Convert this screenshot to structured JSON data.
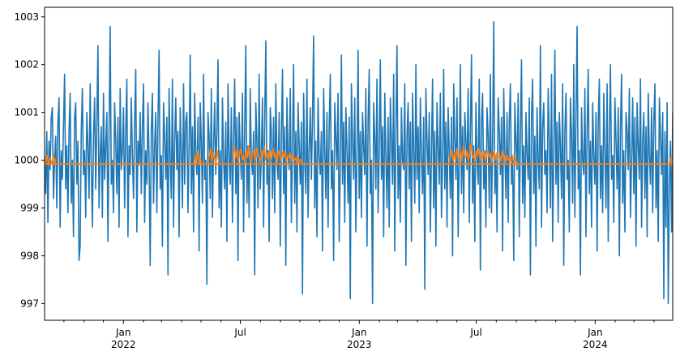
{
  "chart_data": {
    "type": "line",
    "title": "",
    "xlabel": "",
    "ylabel": "",
    "x_range": [
      "2021-09-01",
      "2024-04-30"
    ],
    "ylim": [
      996.65,
      1003.2
    ],
    "y_ticks": [
      997,
      998,
      999,
      1000,
      1001,
      1002,
      1003
    ],
    "y_tick_labels": [
      "997",
      "998",
      "999",
      "1000",
      "1001",
      "1002",
      "1003"
    ],
    "x_major_ticks": [
      {
        "date": "2022-01-01",
        "label": "Jan",
        "year": "2022"
      },
      {
        "date": "2022-07-01",
        "label": "Jul",
        "year": ""
      },
      {
        "date": "2023-01-01",
        "label": "Jan",
        "year": "2023"
      },
      {
        "date": "2023-07-01",
        "label": "Jul",
        "year": ""
      },
      {
        "date": "2024-01-01",
        "label": "Jan",
        "year": "2024"
      }
    ],
    "x_minor_ticks": [
      "2021-10-01",
      "2021-11-01",
      "2021-12-01",
      "2022-02-01",
      "2022-03-01",
      "2022-04-01",
      "2022-05-01",
      "2022-06-01",
      "2022-08-01",
      "2022-09-01",
      "2022-10-01",
      "2022-11-01",
      "2022-12-01",
      "2023-02-01",
      "2023-03-01",
      "2023-04-01",
      "2023-05-01",
      "2023-06-01",
      "2023-08-01",
      "2023-09-01",
      "2023-10-01",
      "2023-11-01",
      "2023-12-01",
      "2024-02-01",
      "2024-03-01",
      "2024-04-01"
    ],
    "grid": false,
    "legend": "none",
    "series": [
      {
        "color": "#1f77b4",
        "x_start": "2021-09-01",
        "x_step_days": 1,
        "values": [
          1000.1,
          999.3,
          1000.6,
          998.7,
          1000.4,
          999.8,
          1000.9,
          1001.1,
          999.2,
          1000.0,
          1000.5,
          999.0,
          1000.8,
          1001.3,
          998.6,
          1000.2,
          999.6,
          1000.7,
          1001.8,
          999.4,
          1000.3,
          998.9,
          1000.6,
          1001.4,
          999.1,
          1000.0,
          998.4,
          1000.9,
          1001.2,
          999.5,
          1000.4,
          997.9,
          998.2,
          1000.6,
          1001.5,
          999.7,
          1000.2,
          998.8,
          1001.0,
          1000.3,
          999.2,
          1001.6,
          999.9,
          998.6,
          1000.5,
          1001.3,
          999.4,
          1000.8,
          1002.4,
          999.0,
          1000.1,
          1000.7,
          998.8,
          1001.4,
          999.6,
          1000.3,
          1001.0,
          998.3,
          1000.6,
          1002.8,
          999.5,
          1000.0,
          998.9,
          1001.2,
          1000.4,
          999.3,
          1000.9,
          998.6,
          1001.5,
          999.8,
          1000.2,
          1001.1,
          999.0,
          1000.6,
          1001.7,
          998.4,
          1000.3,
          999.7,
          1001.3,
          1000.1,
          999.2,
          1000.8,
          1001.9,
          998.5,
          1000.4,
          999.9,
          1001.0,
          999.3,
          1000.7,
          1001.6,
          998.7,
          1000.2,
          999.5,
          1001.2,
          1000.0,
          997.8,
          1000.6,
          1001.4,
          999.1,
          1000.3,
          1001.0,
          998.9,
          1000.8,
          1002.3,
          999.4,
          1000.1,
          998.2,
          1001.2,
          1000.5,
          999.6,
          1000.9,
          997.6,
          1001.5,
          1000.0,
          999.2,
          1001.7,
          998.6,
          1000.4,
          1001.3,
          999.8,
          1000.6,
          998.4,
          1001.1,
          1000.2,
          999.0,
          1001.6,
          999.5,
          1000.8,
          1001.0,
          998.9,
          1000.3,
          1002.2,
          999.3,
          1000.7,
          998.5,
          1001.4,
          1000.1,
          999.7,
          1000.9,
          998.1,
          1001.2,
          1000.4,
          999.1,
          1001.8,
          999.6,
          1000.0,
          997.4,
          1001.0,
          1000.5,
          999.2,
          1001.5,
          998.8,
          1000.3,
          1001.2,
          999.7,
          1000.6,
          1002.1,
          999.0,
          1000.2,
          998.6,
          1001.3,
          1000.0,
          999.4,
          1000.8,
          998.3,
          1001.6,
          1000.1,
          999.5,
          1001.1,
          998.7,
          1000.4,
          1001.7,
          999.3,
          1000.9,
          997.9,
          1001.0,
          1000.2,
          999.6,
          1001.4,
          998.5,
          1000.7,
          1002.4,
          999.1,
          1000.3,
          998.8,
          1001.5,
          1000.0,
          999.7,
          1000.6,
          997.6,
          1001.2,
          1000.4,
          999.0,
          1001.8,
          999.4,
          1000.1,
          1001.3,
          998.6,
          1000.8,
          1002.5,
          999.5,
          1000.2,
          998.3,
          1001.1,
          1000.6,
          999.2,
          1000.9,
          998.9,
          1001.6,
          1000.0,
          999.6,
          1001.0,
          998.2,
          1000.5,
          1001.9,
          999.3,
          1000.7,
          997.8,
          1001.3,
          1000.1,
          999.8,
          1001.5,
          998.7,
          1000.4,
          1002.0,
          999.1,
          1000.6,
          998.5,
          1001.2,
          1000.3,
          999.5,
          1000.8,
          997.2,
          1001.4,
          1000.0,
          999.3,
          1001.7,
          998.8,
          1000.2,
          1001.1,
          999.6,
          1000.9,
          1002.6,
          999.0,
          1000.4,
          998.4,
          1001.3,
          1000.1,
          999.7,
          1000.6,
          998.1,
          1001.5,
          1000.3,
          999.2,
          1001.0,
          998.6,
          1000.7,
          1001.8,
          999.4,
          1000.2,
          997.9,
          1001.2,
          1000.5,
          999.8,
          1001.4,
          998.3,
          1000.0,
          1002.2,
          999.5,
          1000.8,
          998.7,
          1001.1,
          1000.2,
          999.1,
          1000.9,
          997.1,
          1001.6,
          1000.4,
          999.6,
          1001.3,
          998.5,
          1000.1,
          1002.3,
          999.2,
          1000.6,
          998.8,
          1001.0,
          1000.3,
          999.7,
          1001.5,
          998.2,
          1000.8,
          1001.9,
          999.3,
          1000.0,
          997.0,
          1001.2,
          1000.5,
          999.4,
          1001.7,
          998.9,
          1000.2,
          1002.1,
          999.6,
          1000.7,
          998.4,
          1001.4,
          1000.1,
          999.0,
          1000.9,
          998.6,
          1001.3,
          1000.4,
          999.5,
          1001.8,
          998.1,
          1000.6,
          1002.4,
          999.2,
          1000.3,
          998.7,
          1001.1,
          1000.0,
          999.8,
          1001.6,
          997.8,
          1000.5,
          1001.2,
          999.4,
          1000.8,
          998.3,
          1001.4,
          1000.2,
          999.1,
          1002.0,
          999.6,
          1000.7,
          998.9,
          1001.3,
          1000.1,
          999.3,
          1000.9,
          997.3,
          1001.5,
          1000.4,
          999.7,
          1001.0,
          998.5,
          1000.2,
          1001.7,
          999.0,
          1000.6,
          998.2,
          1001.2,
          1000.3,
          999.5,
          1001.4,
          998.8,
          1000.0,
          1001.9,
          999.4,
          1000.8,
          998.6,
          1001.1,
          1000.2,
          999.2,
          1000.9,
          998.0,
          1001.6,
          1000.5,
          999.6,
          1001.3,
          998.4,
          1000.1,
          1002.0,
          999.3,
          1000.7,
          998.9,
          1001.0,
          1000.4,
          999.8,
          1001.5,
          998.7,
          1000.6,
          1002.2,
          999.1,
          1000.3,
          998.3,
          1001.2,
          1000.0,
          999.5,
          1001.7,
          997.7,
          1000.8,
          1001.4,
          999.4,
          1000.2,
          998.6,
          1001.1,
          1000.5,
          999.0,
          1001.8,
          998.9,
          1000.4,
          1002.9,
          999.3,
          1000.1,
          998.5,
          1001.3,
          1000.6,
          999.7,
          1000.9,
          998.1,
          1001.5,
          1000.2,
          999.2,
          1001.0,
          998.7,
          1000.8,
          1001.6,
          999.5,
          1000.0,
          997.9,
          1001.2,
          1000.4,
          999.8,
          1001.4,
          998.4,
          1000.6,
          1002.1,
          999.1,
          1000.3,
          998.8,
          1001.0,
          1000.1,
          999.6,
          1001.3,
          997.6,
          1000.9,
          1001.7,
          999.3,
          1000.5,
          998.2,
          1001.1,
          1000.0,
          999.4,
          1002.4,
          998.6,
          1000.7,
          1001.2,
          999.7,
          1000.2,
          998.9,
          1001.5,
          1000.4,
          999.0,
          1001.8,
          998.3,
          1000.1,
          1002.3,
          999.5,
          1000.8,
          998.7,
          1001.0,
          1000.3,
          999.2,
          1001.6,
          997.8,
          1000.6,
          1001.4,
          999.6,
          1000.0,
          998.5,
          1001.3,
          1000.5,
          999.1,
          1002.0,
          998.8,
          1000.9,
          1002.8,
          999.4,
          1000.2,
          997.6,
          1001.1,
          1000.0,
          999.7,
          1001.5,
          998.4,
          1000.6,
          1001.9,
          999.3,
          1000.4,
          998.6,
          1001.2,
          1000.1,
          999.5,
          1001.0,
          998.1,
          1000.8,
          1001.7,
          999.2,
          1000.3,
          998.9,
          1001.4,
          1000.2,
          999.0,
          1001.6,
          998.3,
          1000.5,
          1002.0,
          999.6,
          1000.1,
          998.7,
          1001.3,
          1000.4,
          999.4,
          1001.1,
          998.0,
          1000.7,
          1001.8,
          999.1,
          1000.2,
          998.5,
          1001.0,
          1000.6,
          999.8,
          1001.5,
          998.8,
          1000.0,
          1001.3,
          999.3,
          1000.9,
          998.2,
          1001.2,
          1000.3,
          999.6,
          1001.7,
          998.6,
          1000.4,
          1001.0,
          999.2,
          1000.7,
          998.4,
          1001.4,
          1000.1,
          999.5,
          1001.1,
          998.9,
          1000.8,
          1001.6,
          999.0,
          1000.2,
          998.3,
          1001.3,
          1000.5,
          999.7,
          1001.0,
          997.1,
          1000.6,
          998.6,
          1001.2,
          997.0,
          999.5,
          1000.4,
          998.5,
          1001.0
        ]
      },
      {
        "color": "#ff7f0e",
        "x_start": "2021-09-01",
        "x_step_days": 1,
        "baseline": 999.92,
        "segments": [
          {
            "start": "2021-09-01",
            "values": [
              1000.0,
              999.95,
              1000.1,
              999.9,
              1000.05,
              1000.0,
              999.92,
              1000.12,
              999.95,
              1000.02
            ]
          },
          {
            "start": "2022-04-20",
            "values": [
              999.92,
              1000.1,
              999.95,
              1000.2,
              999.92,
              1000.05,
              999.92
            ]
          },
          {
            "start": "2022-05-12",
            "values": [
              999.95,
              1000.1,
              1000.25,
              999.96,
              1000.15,
              1000.05,
              999.92,
              1000.2,
              1000.0,
              999.95
            ]
          },
          {
            "start": "2022-06-18",
            "values": [
              999.95,
              1000.1,
              1000.3,
              1000.05,
              1000.2,
              999.96,
              1000.15,
              1000.25,
              1000.0,
              1000.1,
              999.95,
              1000.2,
              1000.05,
              1000.3,
              1000.1,
              999.97,
              1000.2,
              1000.15,
              1000.0,
              1000.25,
              1000.1,
              1000.05,
              999.96,
              1000.2,
              1000.1,
              1000.3,
              1000.0,
              1000.15,
              1000.05,
              1000.2,
              999.98,
              1000.1,
              1000.25,
              1000.05,
              1000.15,
              999.96,
              1000.2,
              1000.1,
              1000.0,
              1000.15,
              1000.05,
              1000.2,
              999.97,
              1000.1,
              1000.05,
              1000.15,
              999.98,
              1000.1,
              1000.0,
              1000.05,
              999.95,
              1000.1,
              999.96,
              1000.02,
              999.95,
              999.92
            ]
          },
          {
            "start": "2023-05-20",
            "values": [
              999.95,
              1000.1,
              1000.2,
              1000.0,
              1000.15,
              999.96,
              1000.25,
              1000.05,
              1000.1,
              1000.2,
              999.97,
              1000.3,
              1000.1,
              1000.05,
              1000.2,
              1000.0,
              1000.15,
              1000.35,
              1000.05,
              1000.1,
              999.96,
              1000.2,
              1000.1,
              1000.25,
              1000.0,
              1000.15,
              1000.05,
              1000.2,
              999.98,
              1000.1,
              1000.2,
              1000.05,
              1000.15,
              999.96,
              1000.1,
              1000.2,
              1000.0,
              1000.15,
              1000.05,
              1000.1,
              999.97,
              1000.2,
              1000.05,
              1000.1,
              999.96,
              1000.1,
              1000.0,
              1000.05,
              999.95,
              1000.1,
              999.96,
              1000.05,
              999.95,
              999.92
            ]
          },
          {
            "start": "2024-04-25",
            "values": [
              999.92,
              1000.05,
              999.95,
              1000.1,
              999.92
            ]
          }
        ]
      }
    ]
  }
}
